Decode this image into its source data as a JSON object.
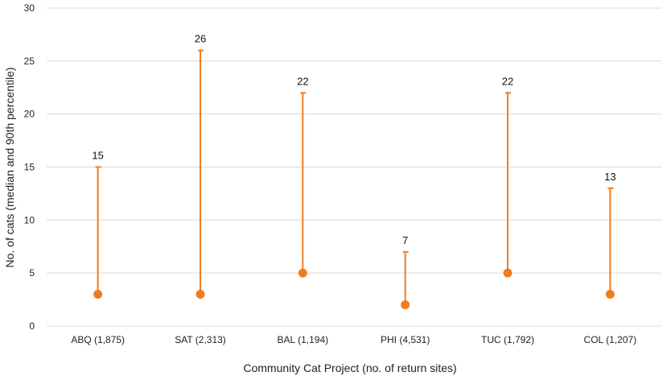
{
  "chart_data": {
    "type": "scatter",
    "xlabel": "Community Cat Project (no. of return sites)",
    "ylabel": "No. of cats (median and 90th percentile)",
    "ylim": [
      0,
      30
    ],
    "yticks": [
      0,
      5,
      10,
      15,
      20,
      25,
      30
    ],
    "grid": true,
    "legend": "none",
    "categories": [
      "ABQ (1,875)",
      "SAT (2,313)",
      "BAL (1,194)",
      "PHI (4,531)",
      "TUC (1,792)",
      "COL (1,207)"
    ],
    "series": [
      {
        "values": [
          3,
          3,
          5,
          2,
          5,
          3
        ]
      },
      {
        "values": [
          15,
          26,
          22,
          7,
          22,
          13
        ]
      }
    ],
    "data_labels": [
      "15",
      "26",
      "22",
      "7",
      "22",
      "13"
    ],
    "colors": {
      "marks": "#f07d1e",
      "grid": "#d9d9d9",
      "text": "#222222"
    }
  }
}
